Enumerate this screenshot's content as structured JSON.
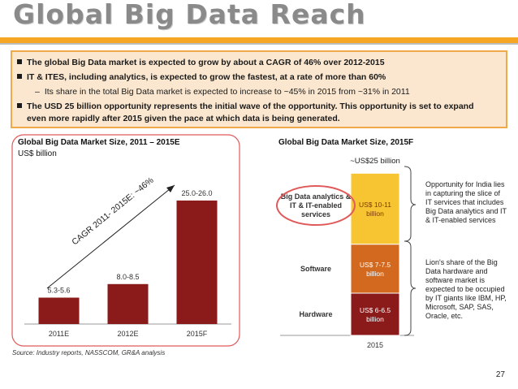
{
  "page": {
    "title": "Global Big Data Reach",
    "bullets": [
      "The global Big Data market is expected to grow by about a CAGR of 46% over 2012-2015",
      "IT & ITES, including analytics, is expected to grow the fastest, at a rate of more than 60%",
      "Its share in the total Big Data market is expected to increase to ~45% in 2015 from ~31% in 2011",
      "The USD 25 billion opportunity represents the initial wave of the opportunity. This opportunity is set to expand",
      "even more rapidly after 2015 given the pace at which data is being generated."
    ],
    "source": "Source: Industry reports, NASSCOM, GR&A analysis",
    "page_number": "27",
    "colors": {
      "accent": "#f5a623",
      "bar": "#8b1a1a",
      "callout": "#e05a5a"
    }
  },
  "chart_data": [
    {
      "type": "bar",
      "title": "Global Big Data Market Size, 2011 – 2015E",
      "subtitle": "US$ billion",
      "categories": [
        "2011E",
        "2012E",
        "2015F"
      ],
      "values": [
        5.45,
        8.25,
        25.5
      ],
      "value_labels": [
        "5.3-5.6",
        "8.0-8.5",
        "25.0-26.0"
      ],
      "annotation": "CAGR 2011- 2015E: ~46%",
      "ylim": [
        0,
        28
      ],
      "color": "#8b1a1a"
    },
    {
      "type": "bar",
      "stacked": true,
      "title": "Global Big Data Market Size, 2015F",
      "categories": [
        "2015"
      ],
      "total_label": "~US$25 billion",
      "series": [
        {
          "name": "Hardware",
          "values": [
            6.25
          ],
          "label": "US$ 6-6.5 billion",
          "color": "#8b1a1a"
        },
        {
          "name": "Software",
          "values": [
            7.25
          ],
          "label": "US$ 7-7.5 billion",
          "color": "#d2691e"
        },
        {
          "name": "Big Data analytics & IT & IT-enabled services",
          "values": [
            10.5
          ],
          "label": "US$ 10-11 billion",
          "color": "#f7c531"
        }
      ],
      "ylim": [
        0,
        25
      ],
      "notes": [
        "Opportunity for India lies in capturing the slice of IT services that includes Big Data analytics and IT & IT-enabled services",
        "Lion's share of the Big Data hardware and software market is expected to be occupied by IT giants like IBM, HP, Microsoft, SAP, SAS, Oracle, etc."
      ]
    }
  ]
}
